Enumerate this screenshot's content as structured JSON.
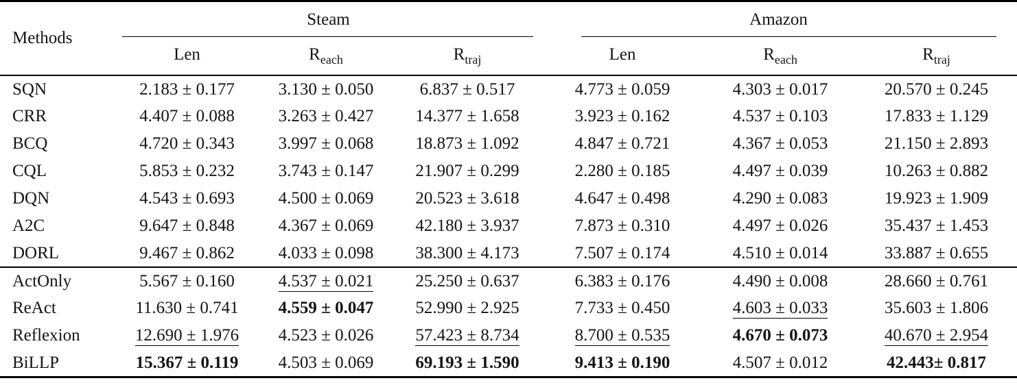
{
  "table": {
    "methods_label": "Methods",
    "groups": [
      {
        "label": "Steam"
      },
      {
        "label": "Amazon"
      }
    ],
    "subcolumns": [
      {
        "base": "Len",
        "sub": ""
      },
      {
        "base": "R",
        "sub": "each"
      },
      {
        "base": "R",
        "sub": "traj"
      }
    ],
    "colors": {
      "text": "#141414",
      "rule": "#000000",
      "background": "#ffffff"
    },
    "sections": [
      {
        "rows": [
          {
            "method": "SQN",
            "cells": [
              {
                "text": "2.183 ± 0.177",
                "style": "n"
              },
              {
                "text": "3.130 ± 0.050",
                "style": "n"
              },
              {
                "text": "6.837 ± 0.517",
                "style": "n"
              },
              {
                "text": "4.773 ± 0.059",
                "style": "n"
              },
              {
                "text": "4.303 ± 0.017",
                "style": "n"
              },
              {
                "text": "20.570 ± 0.245",
                "style": "n"
              }
            ]
          },
          {
            "method": "CRR",
            "cells": [
              {
                "text": "4.407 ± 0.088",
                "style": "n"
              },
              {
                "text": "3.263 ± 0.427",
                "style": "n"
              },
              {
                "text": "14.377 ± 1.658",
                "style": "n"
              },
              {
                "text": "3.923 ± 0.162",
                "style": "n"
              },
              {
                "text": "4.537 ± 0.103",
                "style": "n"
              },
              {
                "text": "17.833 ± 1.129",
                "style": "n"
              }
            ]
          },
          {
            "method": "BCQ",
            "cells": [
              {
                "text": "4.720 ± 0.343",
                "style": "n"
              },
              {
                "text": "3.997 ± 0.068",
                "style": "n"
              },
              {
                "text": "18.873 ± 1.092",
                "style": "n"
              },
              {
                "text": "4.847 ± 0.721",
                "style": "n"
              },
              {
                "text": "4.367 ± 0.053",
                "style": "n"
              },
              {
                "text": "21.150 ± 2.893",
                "style": "n"
              }
            ]
          },
          {
            "method": "CQL",
            "cells": [
              {
                "text": "5.853 ± 0.232",
                "style": "n"
              },
              {
                "text": "3.743 ± 0.147",
                "style": "n"
              },
              {
                "text": "21.907 ± 0.299",
                "style": "n"
              },
              {
                "text": "2.280 ± 0.185",
                "style": "n"
              },
              {
                "text": "4.497 ± 0.039",
                "style": "n"
              },
              {
                "text": "10.263 ± 0.882",
                "style": "n"
              }
            ]
          },
          {
            "method": "DQN",
            "cells": [
              {
                "text": "4.543 ± 0.693",
                "style": "n"
              },
              {
                "text": "4.500 ± 0.069",
                "style": "n"
              },
              {
                "text": "20.523 ± 3.618",
                "style": "n"
              },
              {
                "text": "4.647 ± 0.498",
                "style": "n"
              },
              {
                "text": "4.290 ± 0.083",
                "style": "n"
              },
              {
                "text": "19.923 ± 1.909",
                "style": "n"
              }
            ]
          },
          {
            "method": "A2C",
            "cells": [
              {
                "text": "9.647 ± 0.848",
                "style": "n"
              },
              {
                "text": "4.367 ± 0.069",
                "style": "n"
              },
              {
                "text": "42.180 ± 3.937",
                "style": "n"
              },
              {
                "text": "7.873 ± 0.310",
                "style": "n"
              },
              {
                "text": "4.497 ± 0.026",
                "style": "n"
              },
              {
                "text": "35.437 ± 1.453",
                "style": "n"
              }
            ]
          },
          {
            "method": "DORL",
            "cells": [
              {
                "text": "9.467 ± 0.862",
                "style": "n"
              },
              {
                "text": "4.033 ± 0.098",
                "style": "n"
              },
              {
                "text": "38.300 ± 4.173",
                "style": "n"
              },
              {
                "text": "7.507 ± 0.174",
                "style": "n"
              },
              {
                "text": "4.510 ± 0.014",
                "style": "n"
              },
              {
                "text": "33.887 ± 0.655",
                "style": "n"
              }
            ]
          }
        ]
      },
      {
        "rows": [
          {
            "method": "ActOnly",
            "cells": [
              {
                "text": "5.567 ± 0.160",
                "style": "n"
              },
              {
                "text": "4.537 ± 0.021",
                "style": "u"
              },
              {
                "text": "25.250 ± 0.637",
                "style": "n"
              },
              {
                "text": "6.383 ± 0.176",
                "style": "n"
              },
              {
                "text": "4.490 ± 0.008",
                "style": "n"
              },
              {
                "text": "28.660 ± 0.761",
                "style": "n"
              }
            ]
          },
          {
            "method": "ReAct",
            "cells": [
              {
                "text": "11.630 ± 0.741",
                "style": "n"
              },
              {
                "text": "4.559 ± 0.047",
                "style": "b"
              },
              {
                "text": "52.990 ± 2.925",
                "style": "n"
              },
              {
                "text": "7.733 ± 0.450",
                "style": "n"
              },
              {
                "text": "4.603 ± 0.033",
                "style": "u"
              },
              {
                "text": "35.603 ± 1.806",
                "style": "n"
              }
            ]
          },
          {
            "method": "Reflexion",
            "cells": [
              {
                "text": "12.690 ± 1.976",
                "style": "u"
              },
              {
                "text": "4.523 ± 0.026",
                "style": "n"
              },
              {
                "text": "57.423 ± 8.734",
                "style": "u"
              },
              {
                "text": "8.700 ± 0.535",
                "style": "u"
              },
              {
                "text": "4.670 ± 0.073",
                "style": "b"
              },
              {
                "text": "40.670 ± 2.954",
                "style": "u"
              }
            ]
          },
          {
            "method": "BiLLP",
            "cells": [
              {
                "text": "15.367 ± 0.119",
                "style": "b"
              },
              {
                "text": "4.503 ± 0.069",
                "style": "n"
              },
              {
                "text": "69.193 ± 1.590",
                "style": "b"
              },
              {
                "text": "9.413 ± 0.190",
                "style": "b"
              },
              {
                "text": "4.507 ± 0.012",
                "style": "n"
              },
              {
                "text": "42.443± 0.817",
                "style": "b"
              }
            ]
          }
        ]
      }
    ]
  }
}
